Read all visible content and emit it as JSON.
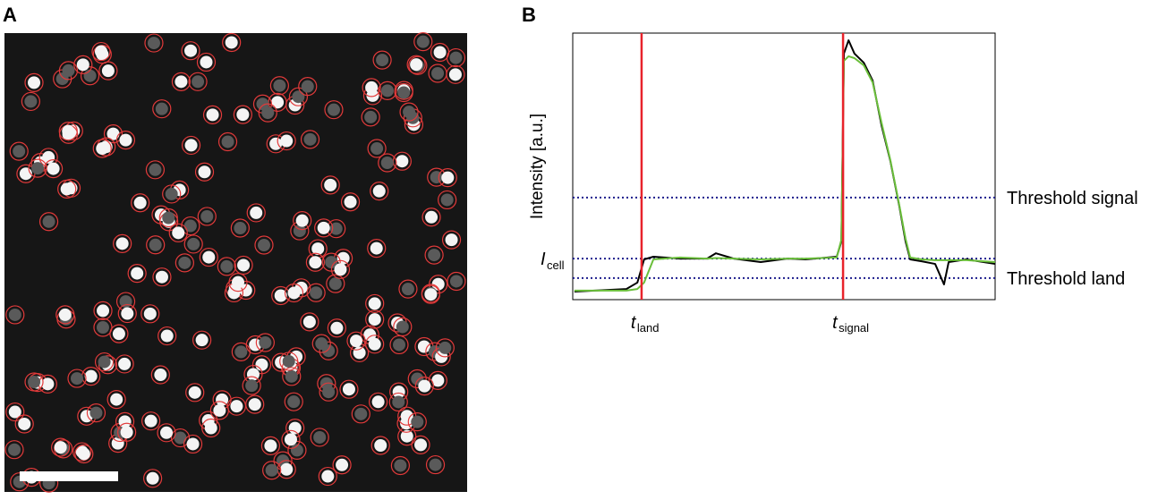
{
  "panels": [
    {
      "label": "A"
    },
    {
      "label": "B"
    }
  ],
  "chart_data": {
    "type": "line",
    "ylabel": "Intensity [a.u.]",
    "xlim": [
      0,
      100
    ],
    "ylim": [
      0,
      100
    ],
    "x": [
      0.4,
      12.7,
      15.3,
      16.9,
      19.1,
      25.4,
      31.8,
      33.9,
      38.1,
      44.5,
      50.8,
      55.1,
      62.5,
      63.6,
      64.2,
      65.3,
      66.7,
      68.9,
      71.0,
      73.1,
      75.2,
      77.3,
      78.8,
      79.9,
      82.6,
      85.8,
      87.9,
      89.0,
      93.2,
      100
    ],
    "series": [
      {
        "color": "#000000",
        "values": [
          3.0,
          4.0,
          6.4,
          15.1,
          16.1,
          15.4,
          15.4,
          17.4,
          15.4,
          14.1,
          15.4,
          15.1,
          16.1,
          21.8,
          92.3,
          97.3,
          92.3,
          88.9,
          82.2,
          65.4,
          52.0,
          35.2,
          21.8,
          15.1,
          14.4,
          13.4,
          5.7,
          14.1,
          15.1,
          13.4
        ]
      },
      {
        "color": "#6abf3a",
        "values": [
          3.4,
          3.4,
          4.0,
          6.4,
          15.1,
          15.8,
          15.4,
          15.6,
          15.4,
          15.1,
          15.4,
          15.4,
          15.8,
          22.5,
          89.6,
          91.3,
          90.6,
          87.9,
          81.5,
          66.4,
          52.3,
          35.6,
          22.8,
          15.8,
          15.1,
          14.8,
          14.8,
          14.8,
          14.8,
          14.1
        ]
      }
    ],
    "events": [
      {
        "x": 16.3,
        "label": "t",
        "subscript": "land"
      },
      {
        "x": 64.0,
        "label": "t",
        "subscript": "signal"
      }
    ],
    "event_color": "#e8232b",
    "levels": [
      {
        "value": 38.3,
        "label": "Threshold signal"
      },
      {
        "value": 15.4,
        "label": "I",
        "subscript": "cell"
      },
      {
        "value": 8.1,
        "label": "Threshold land"
      }
    ],
    "level_color": "#1d1d8c"
  }
}
